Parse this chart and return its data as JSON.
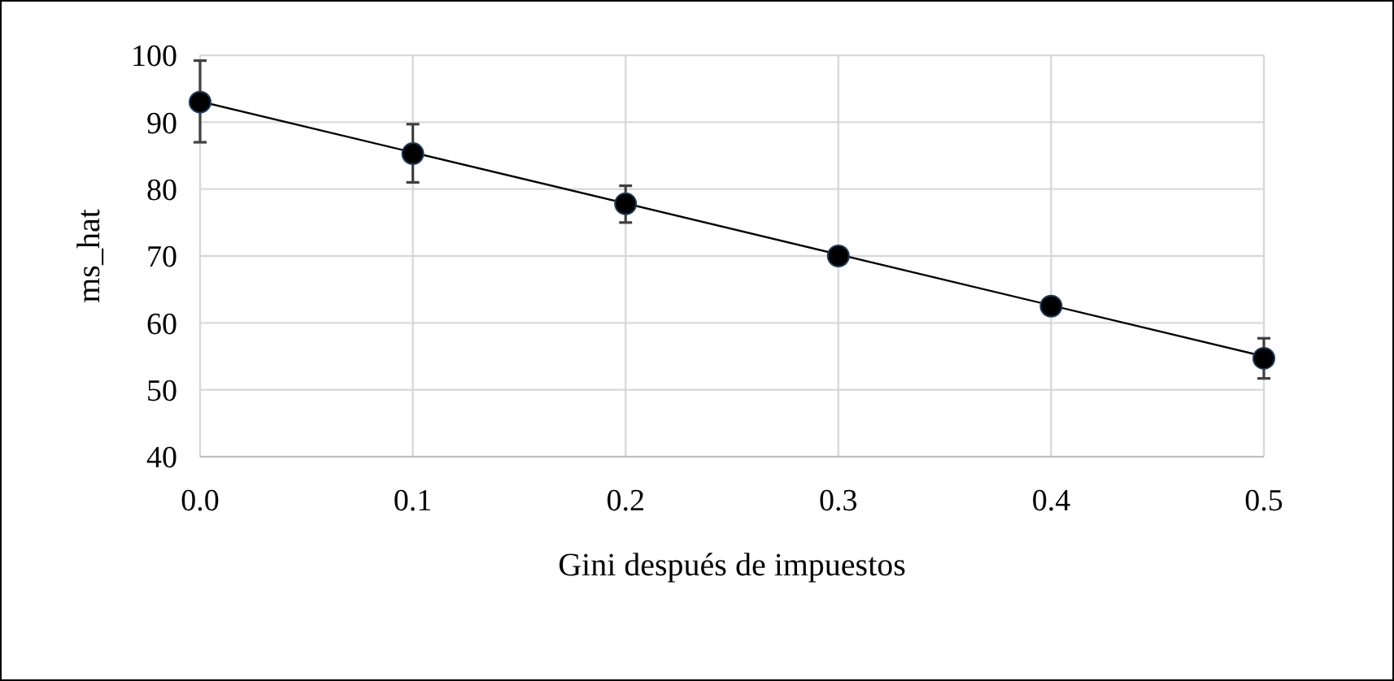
{
  "chart_data": {
    "type": "scatter",
    "xlabel": "Gini después de impuestos",
    "ylabel": "ms_hat",
    "xlim": [
      0,
      0.5
    ],
    "xticks": [
      {
        "value": 0,
        "label": "0.0"
      },
      0.1,
      0.2,
      0.3,
      0.4,
      0.5
    ],
    "ylim": [
      40,
      100
    ],
    "yticks": [
      40,
      50,
      60,
      70,
      80,
      90,
      100
    ],
    "grid": true,
    "marker": "circle",
    "series": [
      {
        "type": "line",
        "color": "#000000",
        "x": [
          0,
          0.5
        ],
        "values": [
          93.1,
          55
        ],
        "line_style": "solid",
        "marker": "none"
      },
      {
        "color": "#000000",
        "x": [
          0,
          0.1,
          0.2,
          0.3,
          0.4,
          0.5
        ],
        "values": [
          93,
          85.3,
          77.8,
          70,
          62.5,
          54.7
        ],
        "errors": [
          [
            87,
            99.2
          ],
          [
            81,
            89.7
          ],
          [
            75,
            80.5
          ],
          [
            69.2,
            70.8
          ],
          [
            61.8,
            63.2
          ],
          [
            51.7,
            57.7
          ]
        ]
      }
    ]
  }
}
